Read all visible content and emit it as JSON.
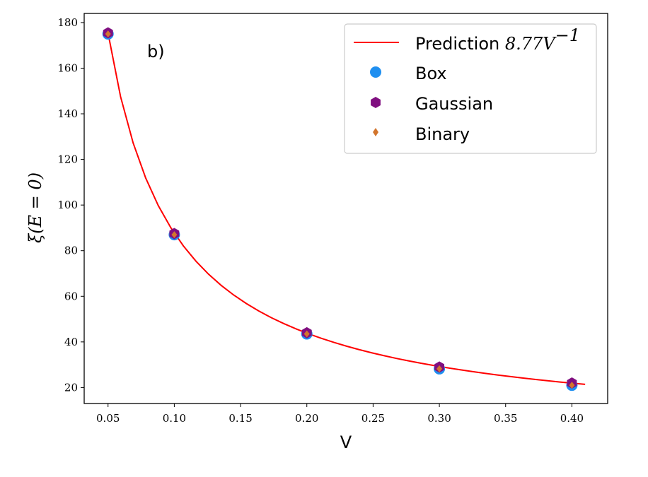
{
  "chart_data": {
    "type": "scatter",
    "xlabel": "V",
    "ylabel": "ξ(E = 0)",
    "xlim": [
      0.032,
      0.427
    ],
    "ylim": [
      13,
      184
    ],
    "xticks": [
      0.05,
      0.1,
      0.15,
      0.2,
      0.25,
      0.3,
      0.35,
      0.4
    ],
    "xtick_labels": [
      "0.05",
      "0.10",
      "0.15",
      "0.20",
      "0.25",
      "0.30",
      "0.35",
      "0.40"
    ],
    "yticks": [
      20,
      40,
      60,
      80,
      100,
      120,
      140,
      160,
      180
    ],
    "ytick_labels": [
      "20",
      "40",
      "60",
      "80",
      "100",
      "120",
      "140",
      "160",
      "180"
    ],
    "annotation": "b)",
    "prediction": {
      "name": "Prediction 8.77V⁻¹",
      "legend_prefix": "Prediction ",
      "legend_math": "8.77V",
      "legend_exp": "−1",
      "coefficient": 8.77,
      "exponent": -1,
      "x_range": [
        0.05,
        0.41
      ],
      "color": "#ff0000"
    },
    "series": [
      {
        "name": "Box",
        "marker": "circle",
        "color": "#1f8ff0",
        "x": [
          0.05,
          0.1,
          0.2,
          0.3,
          0.4
        ],
        "y": [
          175,
          87,
          43.5,
          28.2,
          21
        ]
      },
      {
        "name": "Gaussian",
        "marker": "hexagon",
        "color": "#800f80",
        "x": [
          0.05,
          0.1,
          0.2,
          0.3,
          0.4
        ],
        "y": [
          175.5,
          87.5,
          44,
          29,
          22
        ]
      },
      {
        "name": "Binary",
        "marker": "diamond",
        "color": "#d2752d",
        "x": [
          0.05,
          0.1,
          0.2,
          0.3,
          0.4
        ],
        "y": [
          175,
          87,
          43.5,
          28.2,
          21
        ]
      }
    ]
  }
}
